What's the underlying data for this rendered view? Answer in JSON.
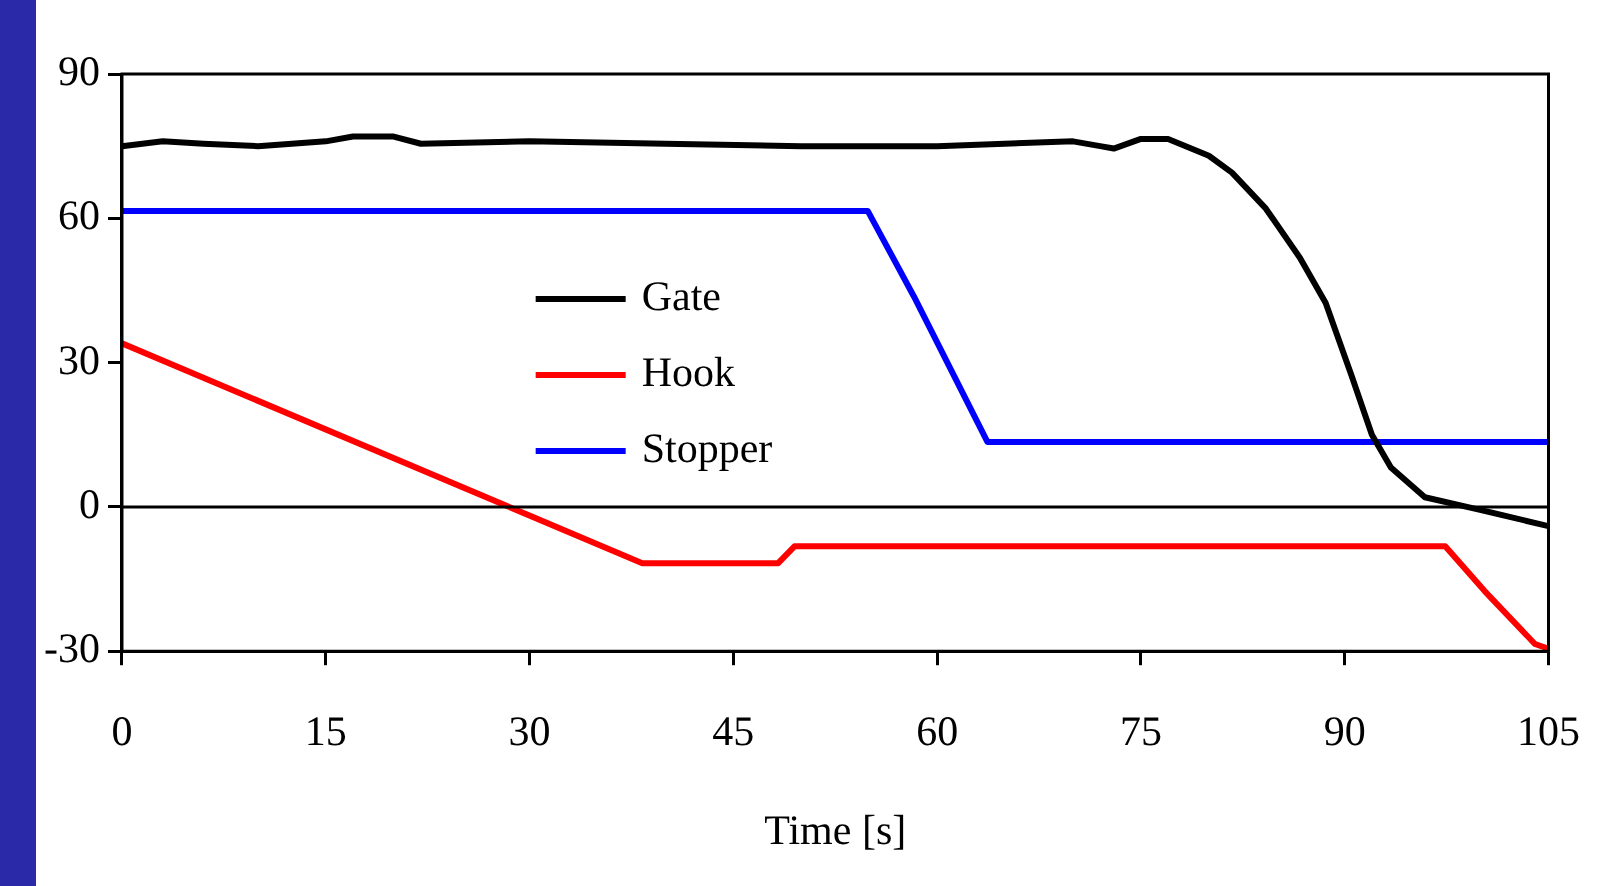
{
  "chart_data": {
    "type": "line",
    "xlabel": "Time [s]",
    "xlim": [
      0,
      105
    ],
    "xticks": [
      0,
      15,
      30,
      45,
      60,
      75,
      90,
      105
    ],
    "ylim": [
      -30,
      90
    ],
    "yticks": [
      -30,
      0,
      30,
      60,
      90
    ],
    "grid": false,
    "legend": "center left",
    "marker": "none",
    "line_style": "solid",
    "ref_lines": [
      {
        "axis": "y",
        "value": 0,
        "color": "#000000"
      }
    ],
    "series": [
      {
        "name": "Gate",
        "color": "#000000",
        "x": [
          0,
          3,
          6,
          10,
          15,
          17,
          20,
          22,
          30,
          40,
          50,
          60,
          70,
          72,
          73,
          75,
          77,
          80,
          81.7,
          84.2,
          86.7,
          88.6,
          90.5,
          92,
          93.4,
          95.9,
          99.8,
          105
        ],
        "values": [
          75,
          76,
          75.5,
          75,
          76,
          77,
          77,
          75.5,
          76,
          75.5,
          75,
          75,
          76,
          75,
          74.5,
          76.5,
          76.5,
          73,
          69.5,
          62,
          51.8,
          42.4,
          27.3,
          15,
          8.2,
          2,
          -0.5,
          -4
        ]
      },
      {
        "name": "Hook",
        "color": "#ff0000",
        "x": [
          0,
          38.3,
          48.3,
          49.5,
          97.4,
          100.3,
          104,
          105
        ],
        "values": [
          34,
          -11.7,
          -11.7,
          -8.2,
          -8.2,
          -17.5,
          -28.5,
          -29.5
        ]
      },
      {
        "name": "Stopper",
        "color": "#0000ff",
        "x": [
          0,
          54.9,
          58.3,
          63.7,
          105
        ],
        "values": [
          61.5,
          61.5,
          43.7,
          13.5,
          13.5
        ]
      }
    ]
  }
}
